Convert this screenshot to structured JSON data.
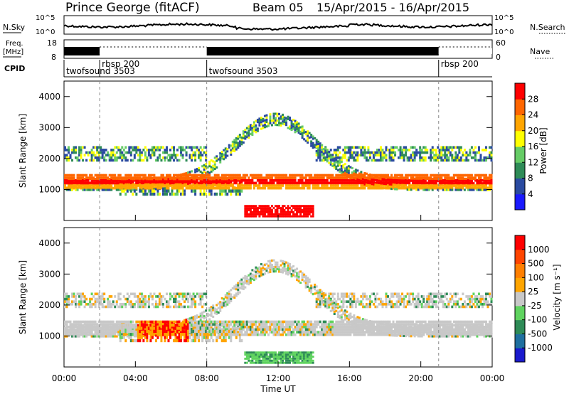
{
  "header": {
    "station": "Prince George (fitACF)",
    "beam": "Beam 05",
    "dates": "15/Apr/2015 - 16/Apr/2015"
  },
  "top_panels": {
    "nsky": {
      "label": "N.Sky",
      "tick_top": "10^5",
      "tick_bottom": "10^0"
    },
    "nsearch": {
      "label": "N.Search",
      "tick_top": "10^5",
      "tick_bottom": "10^0"
    },
    "freq": {
      "label_line1": "Freq.",
      "label_line2": "[MHz]",
      "tick_top": "18",
      "tick_bottom": "8"
    },
    "nave": {
      "label": "Nave",
      "tick_top": "60",
      "tick_bottom": "0"
    },
    "cpid": {
      "label": "CPID",
      "segments": [
        {
          "name": "twofsound 3503",
          "start_h": 0.0
        },
        {
          "name": "rbsp 200",
          "start_h": 2.0
        },
        {
          "name": "twofsound 3503",
          "start_h": 8.0
        },
        {
          "name": "rbsp 200",
          "start_h": 21.0
        }
      ]
    }
  },
  "chart_data": [
    {
      "type": "heatmap",
      "ylabel": "Slant Range [km]",
      "ylim": [
        0,
        4500
      ],
      "yticks": [
        "1000",
        "2000",
        "3000",
        "4000"
      ],
      "colorbar": {
        "label": "Power [dB]",
        "ticks": [
          "4",
          "8",
          "12",
          "16",
          "20",
          "24",
          "28"
        ],
        "colors": [
          "#1a1aff",
          "#2a4aa0",
          "#2e8b57",
          "#66cc66",
          "#ffff00",
          "#ffa500",
          "#ff6600",
          "#ff0000"
        ]
      }
    },
    {
      "type": "heatmap",
      "ylabel": "Slant Range [km]",
      "ylim": [
        0,
        4500
      ],
      "yticks": [
        "1000",
        "2000",
        "3000",
        "4000"
      ],
      "colorbar": {
        "label": "Velocity [m s⁻¹]",
        "ticks": [
          "1000",
          "500",
          "100",
          "25",
          "-25",
          "-100",
          "-500",
          "-1000"
        ],
        "colors": [
          "#1a1acd",
          "#1f6f9f",
          "#2e8b57",
          "#5fd35f",
          "#c8c8c8",
          "#ffa500",
          "#ff7f00",
          "#ff4500",
          "#ff0000"
        ]
      }
    }
  ],
  "xaxis": {
    "label": "Time UT",
    "ticks": [
      "00:00",
      "04:00",
      "08:00",
      "12:00",
      "16:00",
      "20:00",
      "00:00"
    ]
  }
}
